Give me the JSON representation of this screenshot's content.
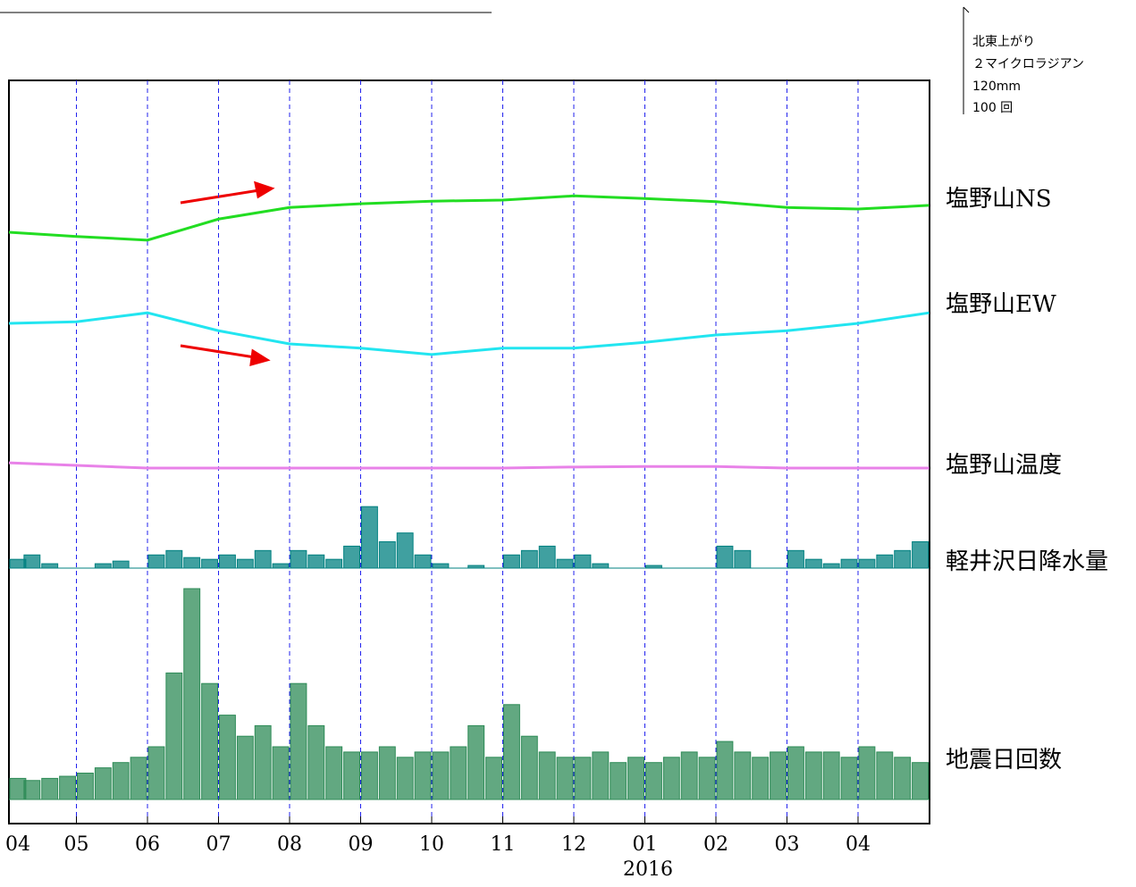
{
  "chart_data": {
    "type": "multi-trace",
    "categories": [
      "04",
      "05",
      "06",
      "07",
      "08",
      "09",
      "10",
      "11",
      "12",
      "01",
      "02",
      "03",
      "04",
      null
    ],
    "x_sublabel": "2016",
    "scale_labels": [
      "北東上がり",
      "２マイクロラジアン",
      "120mm",
      "100 回"
    ],
    "series": [
      {
        "name": "塩野山NS",
        "kind": "line",
        "color": "#22dd22",
        "values": [
          0,
          -0.08,
          -0.15,
          0.25,
          0.47,
          0.54,
          0.59,
          0.61,
          0.69,
          0.64,
          0.58,
          0.47,
          0.44,
          0.51
        ]
      },
      {
        "name": "塩野山EW",
        "kind": "line",
        "color": "#22e5f0",
        "values": [
          0,
          0.03,
          0.2,
          -0.14,
          -0.39,
          -0.47,
          -0.59,
          -0.47,
          -0.47,
          -0.36,
          -0.22,
          -0.14,
          0,
          0.2
        ]
      },
      {
        "name": "塩野山温度",
        "kind": "line",
        "color": "#e882e8",
        "values": [
          0.1,
          0.05,
          0,
          0,
          0,
          0,
          0,
          0,
          0.02,
          0.03,
          0.03,
          0,
          0,
          0
        ]
      },
      {
        "name": "軽井沢日降水量",
        "kind": "bar",
        "color": "#008080",
        "values": [
          [
            10,
            15,
            5,
            0
          ],
          [
            0,
            5,
            8,
            0
          ],
          [
            15,
            20,
            12,
            10
          ],
          [
            15,
            10,
            20,
            5
          ],
          [
            20,
            15,
            10,
            25
          ],
          [
            70,
            30,
            40,
            15
          ],
          [
            5,
            0,
            3,
            0
          ],
          [
            15,
            20,
            25,
            10
          ],
          [
            15,
            5,
            0,
            0
          ],
          [
            3,
            0,
            0,
            0
          ],
          [
            25,
            20,
            0,
            0
          ],
          [
            20,
            10,
            5,
            10
          ],
          [
            10,
            15,
            20,
            30
          ],
          null
        ]
      },
      {
        "name": "地震日回数",
        "kind": "bar",
        "color": "#2e8b57",
        "values": [
          [
            20,
            18,
            20,
            22
          ],
          [
            25,
            30,
            35,
            40
          ],
          [
            50,
            120,
            200,
            110
          ],
          [
            80,
            60,
            70,
            50
          ],
          [
            110,
            70,
            50,
            45
          ],
          [
            45,
            50,
            40,
            45
          ],
          [
            45,
            50,
            70,
            40
          ],
          [
            90,
            60,
            45,
            40
          ],
          [
            40,
            45,
            35,
            40
          ],
          [
            35,
            40,
            45,
            40
          ],
          [
            55,
            45,
            40,
            45
          ],
          [
            50,
            45,
            45,
            40
          ],
          [
            50,
            45,
            40,
            35
          ],
          null
        ]
      }
    ]
  }
}
